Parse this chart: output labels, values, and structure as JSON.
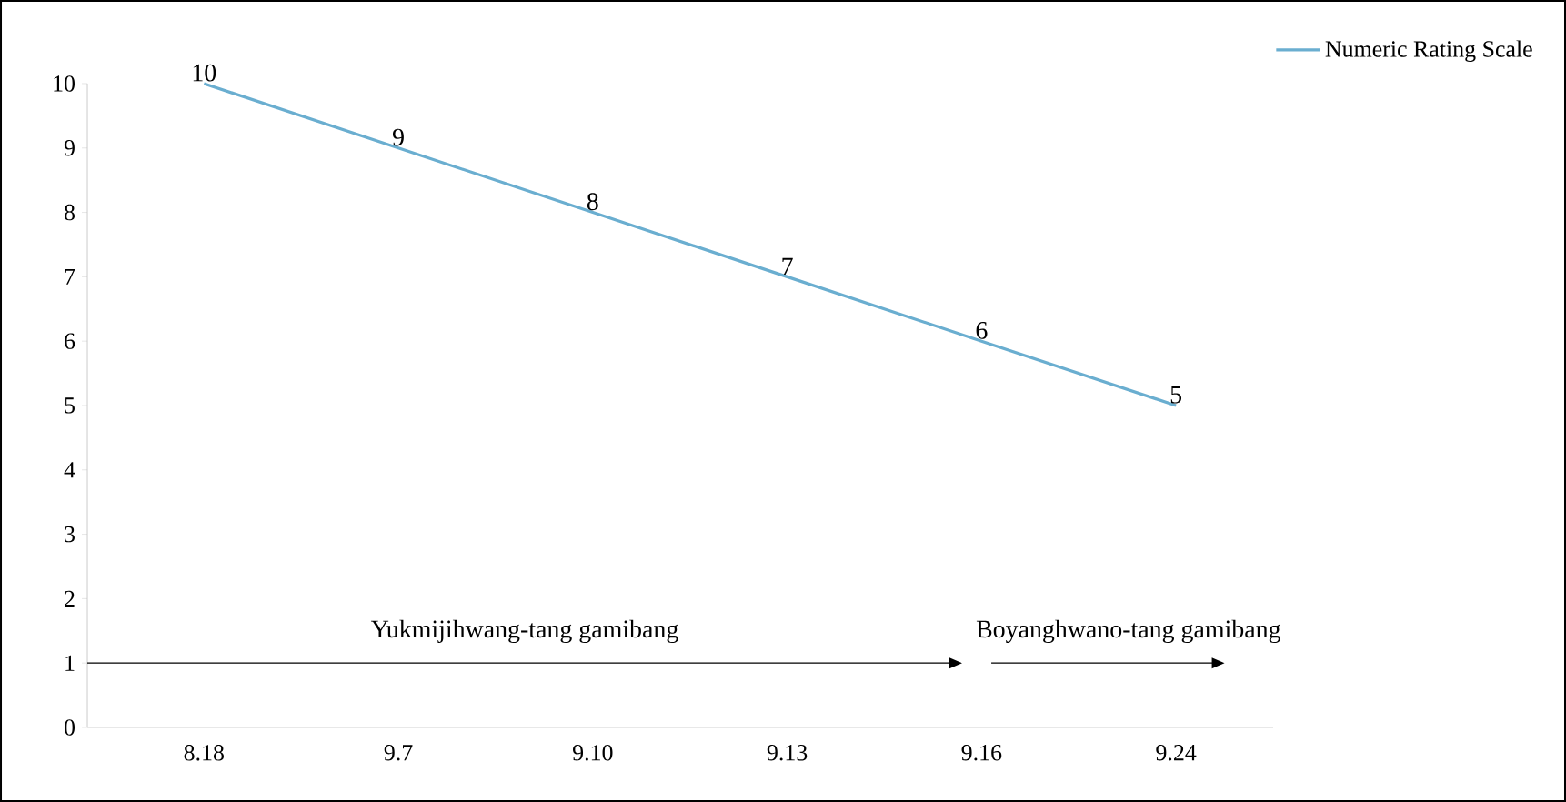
{
  "chart_data": {
    "type": "line",
    "categories": [
      "8.18",
      "9.7",
      "9.10",
      "9.13",
      "9.16",
      "9.24"
    ],
    "series": [
      {
        "name": "Numeric Rating Scale",
        "color": "#6aaed0",
        "values": [
          10,
          9,
          8,
          7,
          6,
          5
        ]
      }
    ],
    "ylim": [
      0,
      10
    ],
    "yticks": [
      0,
      1,
      2,
      3,
      4,
      5,
      6,
      7,
      8,
      9,
      10
    ],
    "data_labels": true,
    "legend": "top right",
    "grid": false,
    "marker": "none",
    "annotations": [
      "Yukmijihwang-tang gamibang",
      "Boyanghwano-tang gamibang"
    ]
  }
}
